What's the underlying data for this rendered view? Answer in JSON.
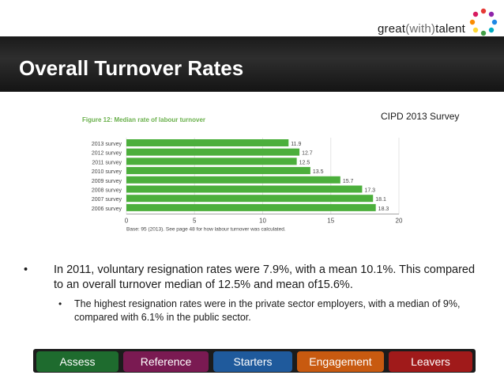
{
  "brand": {
    "prefix": "great",
    "mid": "(with)",
    "suffix": "talent"
  },
  "slide": {
    "title": "Overall Turnover Rates",
    "source_label": "CIPD 2013 Survey"
  },
  "bullets": {
    "main": "In 2011, voluntary resignation rates were 7.9%, with a mean 10.1%. This compared to an overall turnover median of 12.5% and mean of15.6%.",
    "sub": "The highest resignation rates were in the private sector employers, with a median of 9%, compared with 6.1% in the public sector.",
    "main_marker": "•",
    "sub_marker": "•"
  },
  "nav": {
    "tabs": [
      {
        "label": "Assess",
        "color": "#1e6b2e"
      },
      {
        "label": "Reference",
        "color": "#7a1a52"
      },
      {
        "label": "Starters",
        "color": "#1f5a9c"
      },
      {
        "label": "Engagement",
        "color": "#c85a10"
      },
      {
        "label": "Leavers",
        "color": "#a01a1a"
      }
    ]
  },
  "colors": {
    "bar": "#4caf3c",
    "axis_text": "#444444"
  },
  "chart_data": {
    "type": "bar",
    "orientation": "horizontal",
    "title": "Figure 12: Median rate of labour turnover",
    "categories": [
      "2013 survey",
      "2012 survey",
      "2011 survey",
      "2010 survey",
      "2009 survey",
      "2008 survey",
      "2007 survey",
      "2006 survey"
    ],
    "values": [
      11.9,
      12.7,
      12.5,
      13.5,
      15.7,
      17.3,
      18.1,
      18.3
    ],
    "data_labels": [
      "11.9",
      "12.7",
      "12.5",
      "13.5",
      "15.7",
      "17.3",
      "18.1",
      "18.3"
    ],
    "xlim": [
      0,
      20
    ],
    "xticks": [
      0,
      5,
      10,
      15,
      20
    ],
    "xlabel": "",
    "ylabel": "",
    "note": "Base: 95 (2013). See page 48 for how labour turnover was calculated."
  }
}
